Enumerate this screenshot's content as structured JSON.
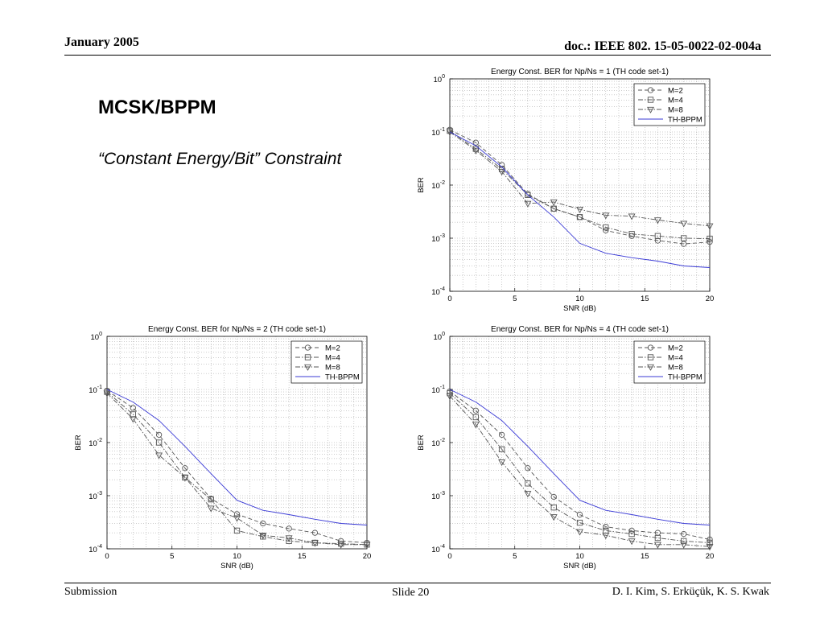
{
  "header": {
    "date": "January 2005",
    "doc": "doc.: IEEE 802. 15-05-0022-02-004a"
  },
  "slide": {
    "title": "MCSK/BPPM",
    "subtitle": "“Constant Energy/Bit” Constraint"
  },
  "footer": {
    "left": "Submission",
    "center": "Slide 20",
    "right": "D. I. Kim, S. Erküçük, K. S. Kwak"
  },
  "colors": {
    "theory": "#3b3bd6",
    "sim": "#555555"
  },
  "chart_data": [
    {
      "type": "line",
      "title": "Energy Const. BER for Np/Ns = 1 (TH code set-1)",
      "xlabel": "SNR (dB)",
      "ylabel": "BER",
      "xlim": [
        0,
        20
      ],
      "ylim": [
        0.0001,
        1
      ],
      "yscale": "log",
      "xticks": [
        "0",
        "5",
        "10",
        "15",
        "20"
      ],
      "grid": true,
      "legend_position": "top-right",
      "series": [
        {
          "name": "M=2",
          "marker": "circle",
          "style": "dash",
          "x": [
            0,
            2,
            4,
            6,
            8,
            10,
            12,
            14,
            16,
            18,
            20
          ],
          "y": [
            0.11,
            0.063,
            0.024,
            0.0068,
            0.0036,
            0.0025,
            0.0014,
            0.0011,
            0.0009,
            0.00078,
            0.00085
          ]
        },
        {
          "name": "M=4",
          "marker": "square",
          "style": "dashdot",
          "x": [
            0,
            2,
            4,
            6,
            8,
            10,
            12,
            14,
            16,
            18,
            20
          ],
          "y": [
            0.105,
            0.048,
            0.02,
            0.0065,
            0.0036,
            0.0025,
            0.0016,
            0.0012,
            0.0011,
            0.001,
            0.00098
          ]
        },
        {
          "name": "M=8",
          "marker": "triangle",
          "style": "dashdot",
          "x": [
            0,
            2,
            4,
            6,
            8,
            10,
            12,
            14,
            16,
            18,
            20
          ],
          "y": [
            0.1,
            0.045,
            0.018,
            0.0045,
            0.0048,
            0.0035,
            0.0027,
            0.0026,
            0.0022,
            0.0019,
            0.0017
          ]
        },
        {
          "name": "TH-BPPM",
          "marker": "none",
          "style": "solid",
          "x": [
            0,
            2,
            4,
            6,
            8,
            10,
            12,
            14,
            16,
            18,
            20
          ],
          "y": [
            0.1,
            0.055,
            0.022,
            0.0065,
            0.0025,
            0.0008,
            0.00052,
            0.00043,
            0.00037,
            0.0003,
            0.00028
          ]
        }
      ]
    },
    {
      "type": "line",
      "title": "Energy Const. BER for Np/Ns = 2 (TH code set-1)",
      "xlabel": "SNR (dB)",
      "ylabel": "BER",
      "xlim": [
        0,
        20
      ],
      "ylim": [
        0.0001,
        1
      ],
      "yscale": "log",
      "xticks": [
        "0",
        "5",
        "10",
        "15",
        "20"
      ],
      "grid": true,
      "legend_position": "top-right",
      "series": [
        {
          "name": "M=2",
          "marker": "circle",
          "style": "dash",
          "x": [
            0,
            2,
            4,
            6,
            8,
            10,
            12,
            14,
            16,
            18,
            20
          ],
          "y": [
            0.095,
            0.045,
            0.014,
            0.0033,
            0.00088,
            0.00045,
            0.0003,
            0.00024,
            0.0002,
            0.00014,
            0.00013
          ]
        },
        {
          "name": "M=4",
          "marker": "square",
          "style": "dashdot",
          "x": [
            0,
            2,
            4,
            6,
            8,
            10,
            12,
            14,
            16,
            18,
            20
          ],
          "y": [
            0.09,
            0.034,
            0.01,
            0.0022,
            0.00085,
            0.00022,
            0.00017,
            0.00014,
            0.00013,
            0.000125,
            0.00012
          ]
        },
        {
          "name": "M=8",
          "marker": "triangle",
          "style": "dashdot",
          "x": [
            0,
            2,
            4,
            6,
            8,
            10,
            12,
            14,
            16,
            18,
            20
          ],
          "y": [
            0.085,
            0.028,
            0.0058,
            0.0022,
            0.00058,
            0.00038,
            0.00018,
            0.00016,
            0.00013,
            0.00012,
            0.00012
          ]
        },
        {
          "name": "TH-BPPM",
          "marker": "none",
          "style": "solid",
          "x": [
            0,
            2,
            4,
            6,
            8,
            10,
            12,
            14,
            16,
            18,
            20
          ],
          "y": [
            0.1,
            0.058,
            0.026,
            0.0085,
            0.0026,
            0.00082,
            0.00053,
            0.00044,
            0.00036,
            0.0003,
            0.00028
          ]
        }
      ]
    },
    {
      "type": "line",
      "title": "Energy Const. BER for Np/Ns = 4 (TH code set-1)",
      "xlabel": "SNR (dB)",
      "ylabel": "BER",
      "xlim": [
        0,
        20
      ],
      "ylim": [
        0.0001,
        1
      ],
      "yscale": "log",
      "xticks": [
        "0",
        "5",
        "10",
        "15",
        "20"
      ],
      "grid": true,
      "legend_position": "top-right",
      "series": [
        {
          "name": "M=2",
          "marker": "circle",
          "style": "dash",
          "x": [
            0,
            2,
            4,
            6,
            8,
            10,
            12,
            14,
            16,
            18,
            20
          ],
          "y": [
            0.092,
            0.04,
            0.014,
            0.0033,
            0.00095,
            0.00044,
            0.00026,
            0.00022,
            0.0002,
            0.00019,
            0.00015
          ]
        },
        {
          "name": "M=4",
          "marker": "square",
          "style": "dashdot",
          "x": [
            0,
            2,
            4,
            6,
            8,
            10,
            12,
            14,
            16,
            18,
            20
          ],
          "y": [
            0.085,
            0.03,
            0.0075,
            0.0017,
            0.0006,
            0.00031,
            0.00022,
            0.00019,
            0.00016,
            0.00014,
            0.00013
          ]
        },
        {
          "name": "M=8",
          "marker": "triangle",
          "style": "dashdot",
          "x": [
            0,
            2,
            4,
            6,
            8,
            10,
            12,
            14,
            16,
            18,
            20
          ],
          "y": [
            0.075,
            0.022,
            0.0043,
            0.0011,
            0.0004,
            0.00021,
            0.00018,
            0.00014,
            0.00012,
            0.00012,
            0.00011
          ]
        },
        {
          "name": "TH-BPPM",
          "marker": "none",
          "style": "solid",
          "x": [
            0,
            2,
            4,
            6,
            8,
            10,
            12,
            14,
            16,
            18,
            20
          ],
          "y": [
            0.1,
            0.058,
            0.026,
            0.0085,
            0.0026,
            0.00082,
            0.00053,
            0.00044,
            0.00036,
            0.0003,
            0.00028
          ]
        }
      ]
    }
  ]
}
